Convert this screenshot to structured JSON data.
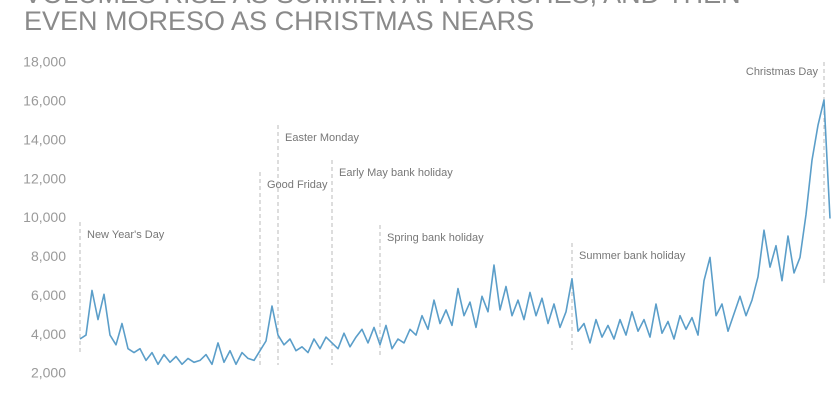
{
  "chart_data": {
    "type": "line",
    "title": [
      "VOLUMES RISE AS SUMMER APPROACHES, AND THEN",
      "EVEN MORESO AS CHRISTMAS NEARS"
    ],
    "color": "#5b9ec9",
    "ylim": [
      2000,
      18000
    ],
    "yticks": [
      {
        "value": 2000,
        "label": "2,000"
      },
      {
        "value": 4000,
        "label": "4,000"
      },
      {
        "value": 6000,
        "label": "6,000"
      },
      {
        "value": 8000,
        "label": "8,000"
      },
      {
        "value": 10000,
        "label": "10,000"
      },
      {
        "value": 12000,
        "label": "12,000"
      },
      {
        "value": 14000,
        "label": "14,000"
      },
      {
        "value": 16000,
        "label": "16,000"
      },
      {
        "value": 18000,
        "label": "18,000"
      }
    ],
    "values": [
      3800,
      4000,
      6300,
      4800,
      6100,
      4000,
      3500,
      4600,
      3300,
      3100,
      3300,
      2700,
      3100,
      2500,
      3000,
      2600,
      2900,
      2500,
      2800,
      2600,
      2700,
      3000,
      2500,
      3600,
      2600,
      3200,
      2500,
      3100,
      2800,
      2700,
      3200,
      3700,
      5500,
      4000,
      3500,
      3800,
      3200,
      3400,
      3100,
      3800,
      3300,
      3900,
      3600,
      3300,
      4100,
      3400,
      3900,
      4300,
      3600,
      4400,
      3500,
      4500,
      3300,
      3800,
      3600,
      4300,
      4000,
      5000,
      4300,
      5800,
      4600,
      5300,
      4500,
      6400,
      5000,
      5700,
      4400,
      6000,
      5200,
      7600,
      5300,
      6500,
      5000,
      5800,
      4800,
      6200,
      5000,
      5900,
      4600,
      5600,
      4400,
      5200,
      6900,
      4200,
      4600,
      3600,
      4800,
      3900,
      4500,
      3800,
      4800,
      4000,
      5200,
      4200,
      4800,
      3900,
      5600,
      4100,
      4700,
      3800,
      5000,
      4300,
      4900,
      4000,
      6800,
      8000,
      5000,
      5600,
      4200,
      5100,
      6000,
      5000,
      5800,
      7000,
      9400,
      7500,
      8600,
      6800,
      9100,
      7200,
      8000,
      10200,
      13000,
      14800,
      16100,
      10000
    ],
    "annotations": [
      {
        "label": "New Year's Day",
        "index": 0
      },
      {
        "label": "Good Friday",
        "index": 30
      },
      {
        "label": "Easter Monday",
        "index": 33
      },
      {
        "label": "Early May bank holiday",
        "index": 42
      },
      {
        "label": "Spring bank holiday",
        "index": 50
      },
      {
        "label": "Summer bank holiday",
        "index": 82
      },
      {
        "label": "Christmas Day",
        "index": 124
      }
    ]
  }
}
